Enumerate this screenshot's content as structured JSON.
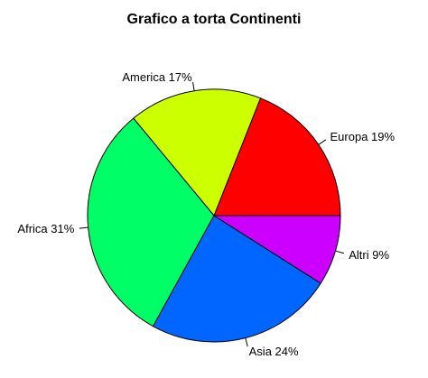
{
  "chart_data": {
    "type": "pie",
    "title": "Grafico a torta Continenti",
    "slices": [
      {
        "label": "Europa 19%",
        "value": 19,
        "color": "#FF0000"
      },
      {
        "label": "America 17%",
        "value": 17,
        "color": "#CCFF00"
      },
      {
        "label": "Africa 31%",
        "value": 31,
        "color": "#00FF66"
      },
      {
        "label": "Asia 24%",
        "value": 24,
        "color": "#0066FF"
      },
      {
        "label": "Altri 9%",
        "value": 9,
        "color": "#CC00FF"
      }
    ],
    "start_angle_deg": 0,
    "direction": "counterclockwise",
    "legend": "none"
  }
}
